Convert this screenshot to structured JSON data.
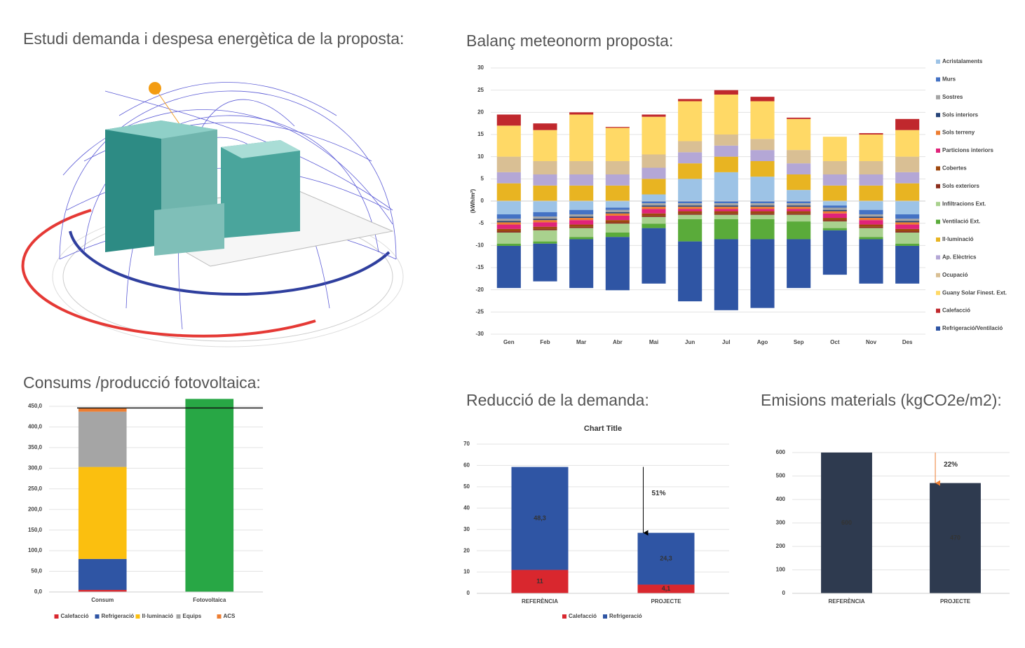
{
  "illustration_title": "Estudi demanda i despesa energètica de la proposta:",
  "chart_data": [
    {
      "type": "stacked-bar",
      "title": "Balanç meteonorm proposta:",
      "y_label": "(kWh/m²)",
      "categories": [
        "Gen",
        "Feb",
        "Mar",
        "Abr",
        "Mai",
        "Jun",
        "Jul",
        "Ago",
        "Sep",
        "Oct",
        "Nov",
        "Des"
      ],
      "ylim": [
        -30,
        30
      ],
      "yticks": [
        30,
        25,
        20,
        15,
        10,
        5,
        0,
        -5,
        -10,
        -15,
        -20,
        -25,
        -30
      ],
      "grid": true,
      "legend": "right",
      "series": [
        {
          "name": "Acristalaments",
          "color": "#9dc3e6",
          "values": [
            -3,
            -2.5,
            -2,
            -1.5,
            1.5,
            5,
            6.5,
            5.5,
            2.5,
            -1,
            -2,
            -3
          ]
        },
        {
          "name": "Murs",
          "color": "#4472c4",
          "values": [
            -1,
            -1,
            -1,
            -0.5,
            -0.5,
            -0.5,
            -0.5,
            -0.5,
            -0.5,
            -0.5,
            -1,
            -1
          ]
        },
        {
          "name": "Sostres",
          "color": "#a5a5a5",
          "values": [
            -0.5,
            -0.5,
            -0.5,
            -0.5,
            -0.5,
            -0.5,
            -0.5,
            -0.5,
            -0.5,
            -0.5,
            -0.5,
            -0.5
          ]
        },
        {
          "name": "Sols interiors",
          "color": "#264478",
          "values": [
            -0.3,
            -0.3,
            -0.3,
            -0.3,
            -0.3,
            -0.3,
            -0.3,
            -0.3,
            -0.3,
            -0.3,
            -0.3,
            -0.3
          ]
        },
        {
          "name": "Sols terreny",
          "color": "#ed7d31",
          "values": [
            -0.5,
            -0.5,
            -0.5,
            -0.5,
            -0.5,
            -0.5,
            -0.5,
            -0.5,
            -0.5,
            -0.5,
            -0.5,
            -0.5
          ]
        },
        {
          "name": "Particions interiors",
          "color": "#e0237a",
          "values": [
            -1,
            -1,
            -1,
            -1,
            -1,
            -0.5,
            -0.5,
            -0.5,
            -0.5,
            -1,
            -1,
            -1
          ]
        },
        {
          "name": "Cobertes",
          "color": "#9e480e",
          "values": [
            -0.5,
            -0.5,
            -0.5,
            -0.5,
            -0.5,
            -0.5,
            -0.5,
            -0.5,
            -0.5,
            -0.5,
            -0.5,
            -0.5
          ]
        },
        {
          "name": "Sols exteriors",
          "color": "#8b2d1c",
          "values": [
            -0.3,
            -0.3,
            -0.3,
            -0.3,
            -0.3,
            -0.3,
            -0.3,
            -0.3,
            -0.3,
            -0.3,
            -0.3,
            -0.3
          ]
        },
        {
          "name": "Infiltracions Ext.",
          "color": "#a9d18e",
          "values": [
            -2.5,
            -2.5,
            -2,
            -2,
            -1.5,
            -1,
            -1,
            -1,
            -1.5,
            -1.5,
            -2,
            -2.5
          ]
        },
        {
          "name": "Ventilació Ext.",
          "color": "#5aab3a",
          "values": [
            -0.5,
            -0.5,
            -0.5,
            -1,
            -1,
            -5,
            -4.5,
            -4.5,
            -4,
            -0.5,
            -0.5,
            -0.5
          ]
        },
        {
          "name": "Il·luminació",
          "color": "#e8b422",
          "values": [
            4,
            3.5,
            3.5,
            3.5,
            3.5,
            3.5,
            3.5,
            3.5,
            3.5,
            3.5,
            3.5,
            4
          ]
        },
        {
          "name": "Ap. Elèctrics",
          "color": "#b4a7d6",
          "values": [
            2.5,
            2.5,
            2.5,
            2.5,
            2.5,
            2.5,
            2.5,
            2.5,
            2.5,
            2.5,
            2.5,
            2.5
          ]
        },
        {
          "name": "Ocupació",
          "color": "#d9bf94",
          "values": [
            3.5,
            3,
            3,
            3,
            3,
            2.5,
            2.5,
            2.5,
            3,
            3,
            3,
            3.5
          ]
        },
        {
          "name": "Guany Solar Finest. Ext.",
          "color": "#ffd966",
          "values": [
            7,
            7,
            10.5,
            7.5,
            8.5,
            9,
            9,
            8.5,
            7,
            5.5,
            6,
            6
          ]
        },
        {
          "name": "Calefacció",
          "color": "#c0282d",
          "values": [
            2.5,
            1.5,
            0.5,
            0.2,
            0.5,
            0.5,
            1,
            1,
            0.3,
            0,
            0.3,
            2.5
          ]
        },
        {
          "name": "Refrigeració/Ventilació",
          "color": "#2f55a4",
          "values": [
            -9.5,
            -8.5,
            -11,
            -12,
            -12.5,
            -13.5,
            -16,
            -15.5,
            -11,
            -10,
            -10,
            -8.5
          ]
        }
      ]
    },
    {
      "type": "stacked-bar",
      "title": "Consums /producció fotovoltaica:",
      "categories": [
        "Consum",
        "Fotovoltaica"
      ],
      "ylim": [
        0,
        450
      ],
      "yticks": [
        {
          "value": 0,
          "label": "0,0"
        },
        {
          "value": 50,
          "label": "50,0"
        },
        {
          "value": 100,
          "label": "100,0"
        },
        {
          "value": 150,
          "label": "150,0"
        },
        {
          "value": 200,
          "label": "200,0"
        },
        {
          "value": 250,
          "label": "250,0"
        },
        {
          "value": 300,
          "label": "300,0"
        },
        {
          "value": 350,
          "label": "350,0"
        },
        {
          "value": 400,
          "label": "400,0"
        },
        {
          "value": 450,
          "label": "450,0"
        }
      ],
      "grid": true,
      "legend": "bottom",
      "reference_line": 446,
      "series": [
        {
          "name": "Calefacció",
          "color": "#d9272e",
          "values": [
            5,
            0
          ]
        },
        {
          "name": "Refrigeració",
          "color": "#2f55a4",
          "values": [
            75,
            0
          ]
        },
        {
          "name": "Il·luminació",
          "color": "#fbbf0f",
          "values": [
            223,
            0
          ]
        },
        {
          "name": "Equips",
          "color": "#a5a5a5",
          "values": [
            134,
            0
          ]
        },
        {
          "name": "ACS",
          "color": "#ed7d31",
          "values": [
            9,
            0
          ]
        },
        {
          "name": "Fotovoltaica",
          "color": "#28a745",
          "values": [
            0,
            468
          ]
        }
      ]
    },
    {
      "type": "stacked-bar",
      "title": "Reducció de la demanda:",
      "subtitle": "Chart Title",
      "categories": [
        "REFERÈNCIA",
        "PROJECTE"
      ],
      "ylim": [
        0,
        70
      ],
      "yticks": [
        0,
        10,
        20,
        30,
        40,
        50,
        60,
        70
      ],
      "grid": true,
      "legend": "bottom",
      "annotation": "51%",
      "annotation_color": "#000000",
      "series": [
        {
          "name": "Calefacció",
          "color": "#d9272e",
          "values": [
            11,
            4.1
          ],
          "value_labels": [
            "11",
            "4,1"
          ]
        },
        {
          "name": "Refrigeració",
          "color": "#2f55a4",
          "values": [
            48.3,
            24.3
          ],
          "value_labels": [
            "48,3",
            "24,3"
          ]
        }
      ]
    },
    {
      "type": "bar",
      "title": "Emisions materials (kgCO2e/m2):",
      "categories": [
        "REFERÈNCIA",
        "PROJECTE"
      ],
      "ylim": [
        0,
        600
      ],
      "yticks": [
        0,
        100,
        200,
        300,
        400,
        500,
        600
      ],
      "grid": true,
      "annotation": "22%",
      "annotation_color": "#ed7d31",
      "values": [
        600,
        470
      ],
      "color": "#2e3a4f",
      "data_labels": true
    }
  ]
}
